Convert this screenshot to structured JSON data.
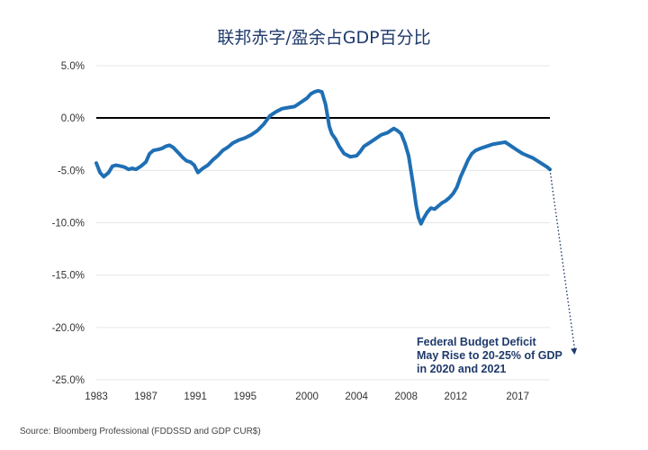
{
  "chart_data": {
    "type": "line",
    "title": "联邦赤字/盈余占GDP百分比",
    "xlabel": "",
    "ylabel": "",
    "x_ticks": [
      "1983",
      "1987",
      "1991",
      "1995",
      "2000",
      "2004",
      "2008",
      "2012",
      "2017"
    ],
    "y_ticks": [
      "5.0%",
      "0.0%",
      "-5.0%",
      "-10.0%",
      "-15.0%",
      "-20.0%",
      "-25.0%"
    ],
    "xlim": [
      1983,
      2019.6
    ],
    "ylim": [
      -25,
      5
    ],
    "grid": true,
    "series": [
      {
        "color": "#1f6fb4",
        "x": [
          1983.0,
          1983.3,
          1983.6,
          1984.0,
          1984.3,
          1984.6,
          1985.0,
          1985.3,
          1985.6,
          1985.9,
          1986.2,
          1986.6,
          1987.0,
          1987.3,
          1987.6,
          1988.0,
          1988.3,
          1988.6,
          1988.9,
          1989.2,
          1989.6,
          1990.0,
          1990.3,
          1990.6,
          1990.9,
          1991.2,
          1991.6,
          1992.0,
          1992.4,
          1992.8,
          1993.2,
          1993.6,
          1994.0,
          1994.5,
          1995.0,
          1995.5,
          1996.0,
          1996.5,
          1997.0,
          1997.5,
          1998.0,
          1998.5,
          1999.0,
          1999.5,
          2000.0,
          2000.3,
          2000.6,
          2000.9,
          2001.2,
          2001.5,
          2001.8,
          2002.0,
          2002.3,
          2002.6,
          2003.0,
          2003.5,
          2004.0,
          2004.3,
          2004.6,
          2005.0,
          2005.5,
          2006.0,
          2006.5,
          2007.0,
          2007.3,
          2007.6,
          2007.9,
          2008.2,
          2008.4,
          2008.6,
          2008.8,
          2009.0,
          2009.2,
          2009.4,
          2009.7,
          2010.0,
          2010.3,
          2010.6,
          2010.9,
          2011.2,
          2011.5,
          2011.8,
          2012.1,
          2012.4,
          2012.7,
          2013.0,
          2013.3,
          2013.6,
          2014.0,
          2014.5,
          2015.0,
          2015.5,
          2016.0,
          2016.5,
          2017.0,
          2017.4,
          2017.8,
          2018.2,
          2018.6,
          2019.0,
          2019.4,
          2019.6
        ],
        "values": [
          -4.3,
          -5.2,
          -5.6,
          -5.2,
          -4.6,
          -4.5,
          -4.6,
          -4.7,
          -4.9,
          -4.8,
          -4.9,
          -4.6,
          -4.2,
          -3.4,
          -3.1,
          -3.0,
          -2.9,
          -2.7,
          -2.6,
          -2.8,
          -3.3,
          -3.8,
          -4.1,
          -4.2,
          -4.5,
          -5.2,
          -4.8,
          -4.5,
          -4.0,
          -3.6,
          -3.1,
          -2.8,
          -2.4,
          -2.1,
          -1.9,
          -1.6,
          -1.2,
          -0.6,
          0.2,
          0.6,
          0.9,
          1.0,
          1.1,
          1.5,
          1.9,
          2.3,
          2.5,
          2.6,
          2.5,
          1.3,
          -0.8,
          -1.5,
          -2.0,
          -2.7,
          -3.4,
          -3.7,
          -3.6,
          -3.2,
          -2.7,
          -2.4,
          -2.0,
          -1.6,
          -1.4,
          -1.0,
          -1.2,
          -1.5,
          -2.4,
          -3.6,
          -5.1,
          -6.6,
          -8.3,
          -9.5,
          -10.1,
          -9.6,
          -9.0,
          -8.6,
          -8.7,
          -8.4,
          -8.1,
          -7.9,
          -7.6,
          -7.2,
          -6.6,
          -5.6,
          -4.8,
          -4.0,
          -3.4,
          -3.1,
          -2.9,
          -2.7,
          -2.5,
          -2.4,
          -2.3,
          -2.7,
          -3.1,
          -3.4,
          -3.6,
          -3.8,
          -4.1,
          -4.4,
          -4.7,
          -4.9
        ]
      }
    ],
    "projection": {
      "from": [
        2019.6,
        -4.9
      ],
      "to": [
        2021.6,
        -22.6
      ],
      "color": "#1f3a6b"
    },
    "annotation": {
      "lines": [
        "Federal Budget Deficit",
        "May Rise to 20-25% of GDP",
        "in 2020 and 2021"
      ]
    },
    "source": "Source: Bloomberg Professional (FDDSSD and GDP CUR$)"
  }
}
